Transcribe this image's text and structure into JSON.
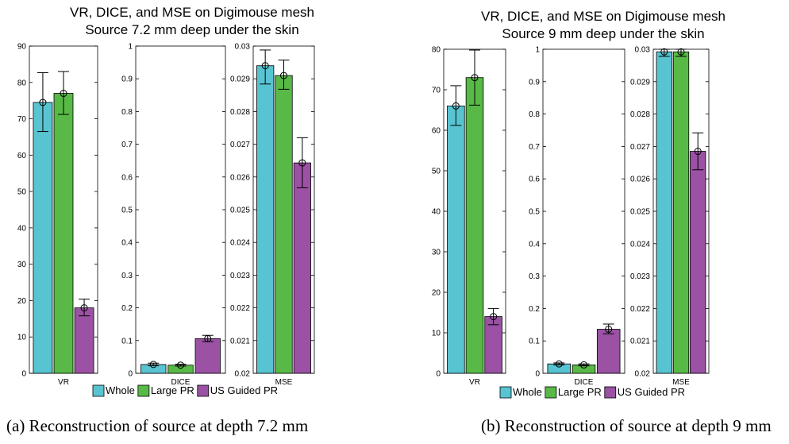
{
  "colors": {
    "Whole": "#58c4d2",
    "Large PR": "#58b947",
    "US Guided PR": "#9b51a4"
  },
  "legend_labels": [
    "Whole",
    "Large PR",
    "US Guided PR"
  ],
  "chart_data": [
    {
      "type": "bar",
      "title": "VR, DICE, and MSE on Digimouse mesh",
      "subtitle": "Source 7.2 mm deep under the skin",
      "caption": "(a) Reconstruction of source at depth 7.2 mm",
      "series_names": [
        "Whole",
        "Large PR",
        "US Guided PR"
      ],
      "legend_placement": "bottom",
      "subplots": [
        {
          "xlabel": "VR",
          "ylim": [
            0,
            90
          ],
          "ticks": [
            "0",
            "10",
            "20",
            "30",
            "40",
            "50",
            "60",
            "70",
            "80",
            "90"
          ],
          "values": [
            74.5,
            77.0,
            18.0
          ],
          "errors": [
            [
              66.5,
              82.7
            ],
            [
              71.2,
              83.0
            ],
            [
              15.8,
              20.4
            ]
          ]
        },
        {
          "xlabel": "DICE",
          "ylim": [
            0,
            1
          ],
          "ticks": [
            "0",
            "0.1",
            "0.2",
            "0.3",
            "0.4",
            "0.5",
            "0.6",
            "0.7",
            "0.8",
            "0.9",
            "1"
          ],
          "values": [
            0.027,
            0.025,
            0.106
          ],
          "errors": [
            [
              0.023,
              0.031
            ],
            [
              0.022,
              0.028
            ],
            [
              0.097,
              0.116
            ]
          ]
        },
        {
          "xlabel": "MSE",
          "ylim": [
            0.02,
            0.03
          ],
          "ticks": [
            "0.02",
            "0.021",
            "0.022",
            "0.023",
            "0.024",
            "0.025",
            "0.026",
            "0.027",
            "0.028",
            "0.029",
            "0.03"
          ],
          "values": [
            0.0294,
            0.0291,
            0.02643
          ],
          "errors": [
            [
              0.02884,
              0.02988
            ],
            [
              0.02868,
              0.02957
            ],
            [
              0.02567,
              0.0272
            ]
          ]
        }
      ]
    },
    {
      "type": "bar",
      "title": "VR, DICE, and MSE on Digimouse mesh",
      "subtitle": "Source 9 mm deep under the skin",
      "caption": "(b) Reconstruction of source at depth 9 mm",
      "series_names": [
        "Whole",
        "Large PR",
        "US Guided PR"
      ],
      "legend_placement": "bottom",
      "subplots": [
        {
          "xlabel": "VR",
          "ylim": [
            0,
            80
          ],
          "ticks": [
            "0",
            "10",
            "20",
            "30",
            "40",
            "50",
            "60",
            "70",
            "80"
          ],
          "values": [
            66.0,
            73.0,
            14.0
          ],
          "errors": [
            [
              61.2,
              71.0
            ],
            [
              66.2,
              79.8
            ],
            [
              12.0,
              16.0
            ]
          ]
        },
        {
          "xlabel": "DICE",
          "ylim": [
            0,
            1
          ],
          "ticks": [
            "0",
            "0.1",
            "0.2",
            "0.3",
            "0.4",
            "0.5",
            "0.6",
            "0.7",
            "0.8",
            "0.9",
            "1"
          ],
          "values": [
            0.029,
            0.026,
            0.136
          ],
          "errors": [
            [
              0.026,
              0.032
            ],
            [
              0.023,
              0.029
            ],
            [
              0.122,
              0.152
            ]
          ]
        },
        {
          "xlabel": "MSE",
          "ylim": [
            0.02,
            0.03
          ],
          "ticks": [
            "0.02",
            "0.021",
            "0.022",
            "0.023",
            "0.024",
            "0.025",
            "0.026",
            "0.027",
            "0.028",
            "0.029",
            "0.03"
          ],
          "values": [
            0.02992,
            0.02992,
            0.02685
          ],
          "errors": [
            [
              0.02978,
              0.03
            ],
            [
              0.02978,
              0.03
            ],
            [
              0.02628,
              0.02742
            ]
          ]
        }
      ]
    }
  ]
}
